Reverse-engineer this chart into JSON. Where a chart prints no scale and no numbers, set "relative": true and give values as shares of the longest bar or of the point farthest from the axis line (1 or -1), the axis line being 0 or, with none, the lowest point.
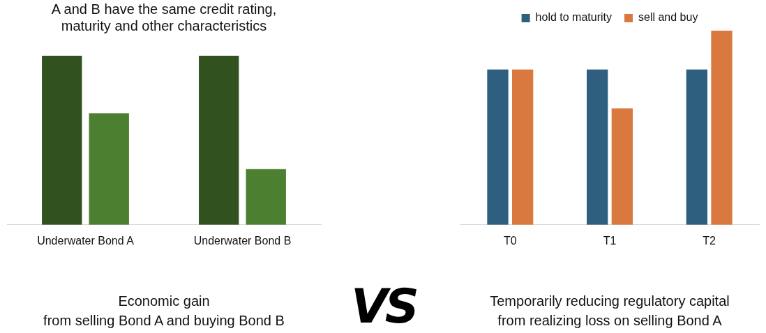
{
  "chart_data": [
    {
      "type": "bar",
      "title": "A and B have the same credit rating,\nmaturity and other characteristics",
      "categories": [
        "Underwater Bond A",
        "Underwater Bond B"
      ],
      "relative": true,
      "legend": false,
      "grid": false,
      "series": [
        {
          "color": "#31521f",
          "values": [
            1,
            1
          ]
        },
        {
          "color": "#4d7f31",
          "values": [
            0.66,
            0.33
          ]
        }
      ],
      "annotations": [
        "Economic gain\nfrom selling Bond A and buying Bond B"
      ]
    },
    {
      "type": "other",
      "annotations": [
        "VS"
      ]
    },
    {
      "type": "bar",
      "categories": [
        "T0",
        "T1",
        "T2"
      ],
      "relative": true,
      "legend": "top",
      "grid": false,
      "series": [
        {
          "name": "hold to maturity",
          "color": "#2e5f7f",
          "values": [
            0.8,
            0.8,
            0.8
          ]
        },
        {
          "name": "sell and buy",
          "color": "#d97940",
          "values": [
            0.8,
            0.6,
            1
          ]
        }
      ],
      "annotations": [
        "Temporarily reducing regulatory capital\nfrom realizing loss on selling Bond A"
      ]
    }
  ]
}
